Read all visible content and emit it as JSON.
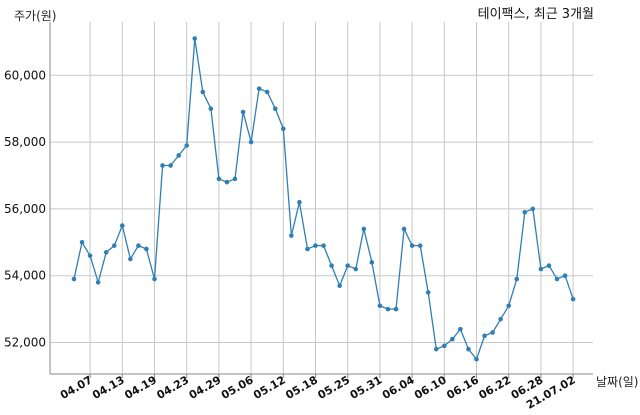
{
  "chart_data": {
    "type": "line",
    "title": "테이팩스, 최근 3개월",
    "xlabel": "날짜(일)",
    "ylabel": "주가(원)",
    "ylim": [
      51000,
      61500
    ],
    "yticks": [
      52000,
      54000,
      56000,
      58000,
      60000
    ],
    "ytick_labels": [
      "52,000",
      "54,000",
      "56,000",
      "58,000",
      "60,000"
    ],
    "xtick_labels": [
      "04.07",
      "04.13",
      "04.19",
      "04.23",
      "04.29",
      "05.06",
      "05.12",
      "05.18",
      "05.25",
      "05.31",
      "06.04",
      "06.10",
      "06.16",
      "06.22",
      "06.28",
      "21.07.02"
    ],
    "xtick_index": [
      2,
      6,
      10,
      14,
      18,
      22,
      26,
      30,
      34,
      38,
      42,
      46,
      50,
      54,
      58,
      62
    ],
    "grid": true,
    "color": "#2f7fb5",
    "series": [
      {
        "values": [
          53900,
          55000,
          54600,
          53800,
          54700,
          54900,
          55500,
          54500,
          54900,
          54800,
          53900,
          57300,
          57300,
          57600,
          57900,
          61100,
          59500,
          59000,
          56900,
          56800,
          56900,
          58900,
          58000,
          59600,
          59500,
          59000,
          58400,
          55200,
          56200,
          54800,
          54900,
          54900,
          54300,
          53700,
          54300,
          54200,
          55400,
          54400,
          53100,
          53000,
          53000,
          55400,
          54900,
          54900,
          53500,
          51800,
          51900,
          52100,
          52400,
          51800,
          51500,
          52200,
          52300,
          52700,
          53100,
          53900,
          55900,
          56000,
          54200,
          54300,
          53900,
          54000,
          53300
        ]
      }
    ]
  }
}
